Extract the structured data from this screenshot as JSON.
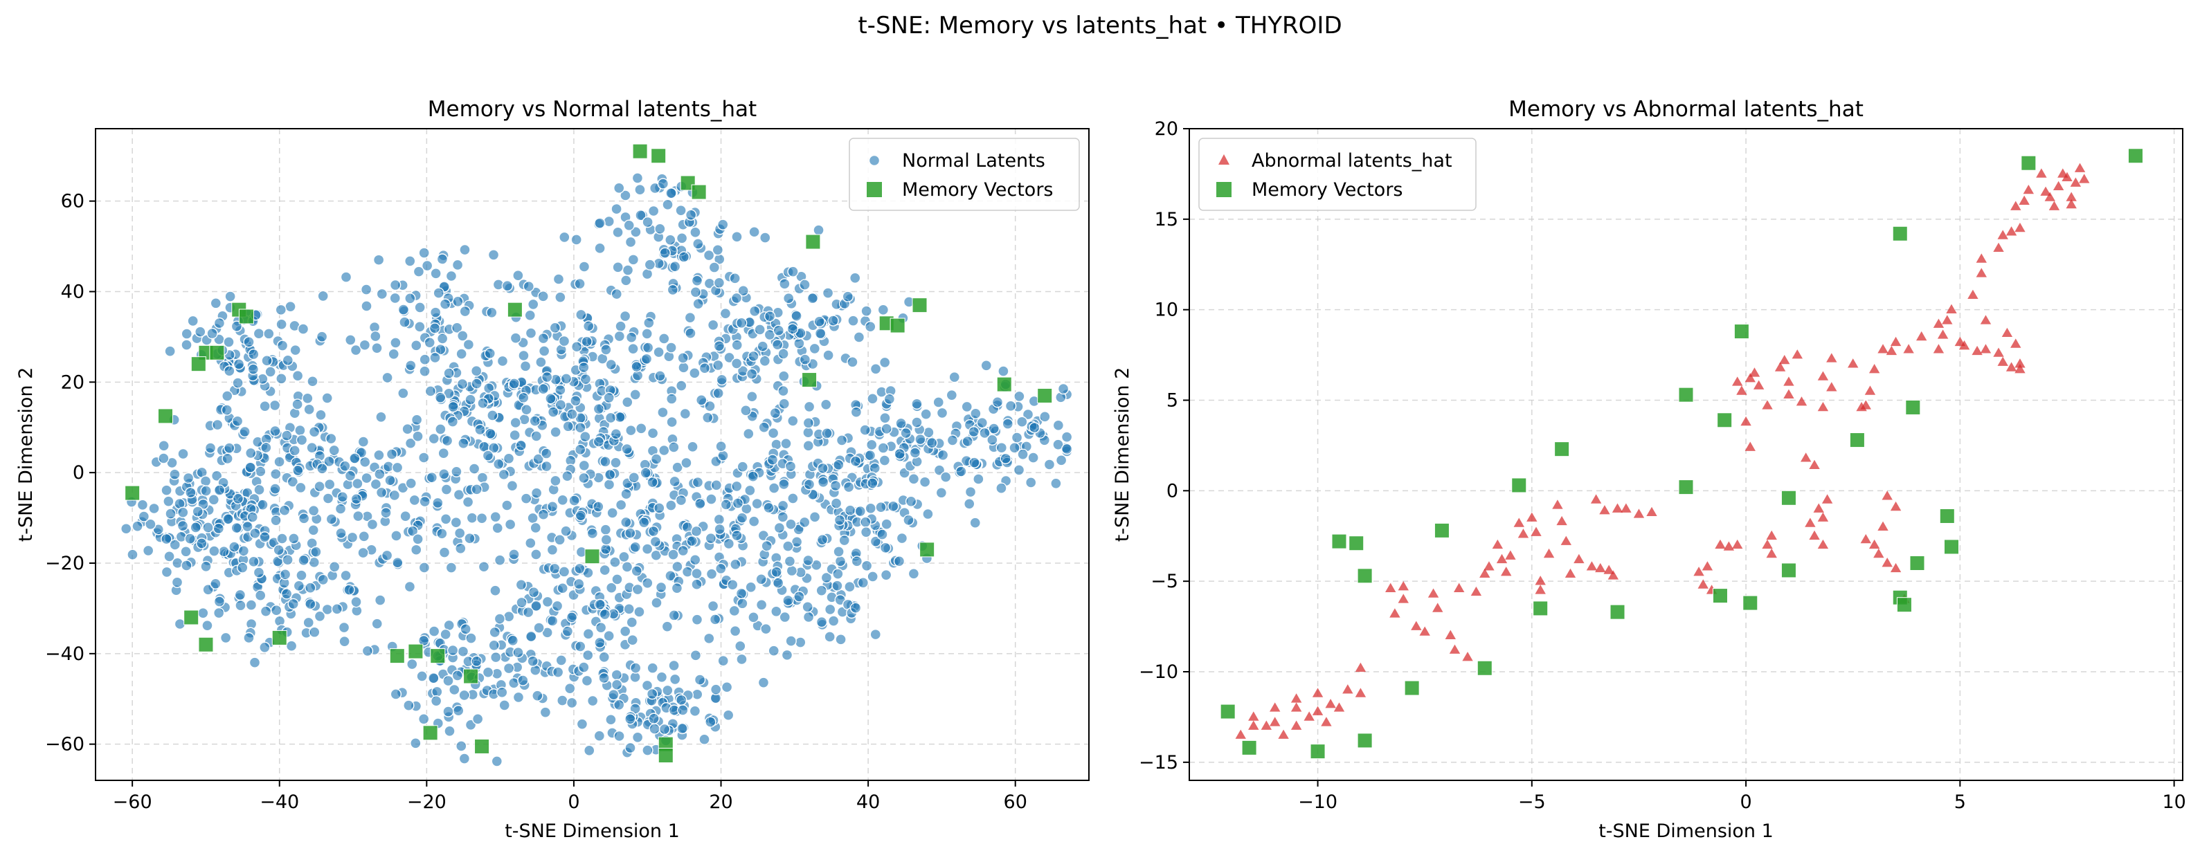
{
  "figure": {
    "title": "t-SNE: Memory vs latents_hat • THYROID"
  },
  "colors": {
    "normal": "#1f77b4",
    "abnormal": "#d62728",
    "memory": "#2ca02c"
  },
  "chart_data": [
    {
      "type": "scatter",
      "title": "Memory vs Normal latents_hat",
      "xlabel": "t-SNE Dimension 1",
      "ylabel": "t-SNE Dimension 2",
      "xlim": [
        -65,
        70
      ],
      "ylim": [
        -68,
        76
      ],
      "xticks": [
        -60,
        -40,
        -20,
        0,
        20,
        40,
        60
      ],
      "yticks": [
        -60,
        -40,
        -20,
        0,
        20,
        40,
        60
      ],
      "grid": true,
      "legend": "top-right",
      "series": [
        {
          "name": "Normal Latents",
          "marker": "circle",
          "color": "#1f77b4",
          "clusters": [
            {
              "cx": -50,
              "cy": -10,
              "sx": 5,
              "sy": 8,
              "n": 140
            },
            {
              "cx": -42,
              "cy": 5,
              "sx": 6,
              "sy": 6,
              "n": 80
            },
            {
              "cx": -45,
              "cy": 27,
              "sx": 4,
              "sy": 6,
              "n": 80
            },
            {
              "cx": -38,
              "cy": -25,
              "sx": 6,
              "sy": 8,
              "n": 110
            },
            {
              "cx": -30,
              "cy": -5,
              "sx": 5,
              "sy": 10,
              "n": 70
            },
            {
              "cx": -20,
              "cy": 35,
              "sx": 6,
              "sy": 7,
              "n": 80
            },
            {
              "cx": -12,
              "cy": 15,
              "sx": 7,
              "sy": 7,
              "n": 100
            },
            {
              "cx": -15,
              "cy": -5,
              "sx": 6,
              "sy": 8,
              "n": 80
            },
            {
              "cx": -15,
              "cy": -45,
              "sx": 5,
              "sy": 7,
              "n": 90
            },
            {
              "cx": 0,
              "cy": 25,
              "sx": 5,
              "sy": 10,
              "n": 100
            },
            {
              "cx": 5,
              "cy": 0,
              "sx": 7,
              "sy": 10,
              "n": 130
            },
            {
              "cx": 0,
              "cy": -35,
              "sx": 6,
              "sy": 10,
              "n": 130
            },
            {
              "cx": 13,
              "cy": 50,
              "sx": 5,
              "sy": 8,
              "n": 90
            },
            {
              "cx": 12,
              "cy": -52,
              "sx": 5,
              "sy": 5,
              "n": 80
            },
            {
              "cx": 15,
              "cy": -15,
              "sx": 7,
              "sy": 8,
              "n": 110
            },
            {
              "cx": 20,
              "cy": 25,
              "sx": 6,
              "sy": 6,
              "n": 80
            },
            {
              "cx": 32,
              "cy": 33,
              "sx": 5,
              "sy": 6,
              "n": 80
            },
            {
              "cx": 30,
              "cy": 0,
              "sx": 7,
              "sy": 9,
              "n": 130
            },
            {
              "cx": 30,
              "cy": -28,
              "sx": 6,
              "sy": 6,
              "n": 70
            },
            {
              "cx": 47,
              "cy": 5,
              "sx": 7,
              "sy": 7,
              "n": 100
            },
            {
              "cx": 60,
              "cy": 8,
              "sx": 4,
              "sy": 6,
              "n": 60
            },
            {
              "cx": 40,
              "cy": -15,
              "sx": 5,
              "sy": 5,
              "n": 50
            }
          ]
        },
        {
          "name": "Memory Vectors",
          "marker": "square",
          "color": "#2ca02c",
          "points": [
            [
              9,
              71
            ],
            [
              11.5,
              70
            ],
            [
              15.5,
              64
            ],
            [
              17,
              62
            ],
            [
              32.5,
              51
            ],
            [
              -8,
              36
            ],
            [
              -45.5,
              36
            ],
            [
              -44.5,
              34.5
            ],
            [
              -50,
              26.5
            ],
            [
              -48.5,
              26.5
            ],
            [
              -51,
              24
            ],
            [
              -55.5,
              12.5
            ],
            [
              -60,
              -4.5
            ],
            [
              42.5,
              33
            ],
            [
              44,
              32.5
            ],
            [
              47,
              37
            ],
            [
              32,
              20.5
            ],
            [
              58.5,
              19.5
            ],
            [
              64,
              17
            ],
            [
              2.5,
              -18.5
            ],
            [
              48,
              -17
            ],
            [
              -52,
              -32
            ],
            [
              -50,
              -38
            ],
            [
              -40,
              -36.5
            ],
            [
              -24,
              -40.5
            ],
            [
              -21.5,
              -39.5
            ],
            [
              -18.5,
              -40.5
            ],
            [
              -19.5,
              -57.5
            ],
            [
              -14,
              -45
            ],
            [
              -12.5,
              -60.5
            ],
            [
              12.5,
              -60
            ],
            [
              12.5,
              -62.5
            ]
          ]
        }
      ]
    },
    {
      "type": "scatter",
      "title": "Memory vs Abnormal latents_hat",
      "xlabel": "t-SNE Dimension 1",
      "ylabel": "t-SNE Dimension 2",
      "xlim": [
        -13,
        10.2
      ],
      "ylim": [
        -16,
        20
      ],
      "xticks": [
        -10,
        -5,
        0,
        5,
        10
      ],
      "yticks": [
        -15,
        -10,
        -5,
        0,
        5,
        10,
        15,
        20
      ],
      "grid": true,
      "legend": "top-left",
      "series": [
        {
          "name": "Abnormal latents_hat",
          "marker": "triangle",
          "color": "#d62728",
          "points": [
            [
              -11.8,
              -13.5
            ],
            [
              -11.5,
              -13
            ],
            [
              -11.5,
              -12.5
            ],
            [
              -11.2,
              -13
            ],
            [
              -11,
              -12.8
            ],
            [
              -11,
              -12
            ],
            [
              -10.8,
              -13.5
            ],
            [
              -10.5,
              -13
            ],
            [
              -10.5,
              -12
            ],
            [
              -10.5,
              -11.5
            ],
            [
              -10.2,
              -12.5
            ],
            [
              -10,
              -11.2
            ],
            [
              -10,
              -12.2
            ],
            [
              -9.8,
              -12.8
            ],
            [
              -9.7,
              -11.8
            ],
            [
              -9.5,
              -12
            ],
            [
              -9.3,
              -11
            ],
            [
              -9,
              -11.2
            ],
            [
              -9,
              -9.8
            ],
            [
              -8.3,
              -5.4
            ],
            [
              -8.2,
              -6.8
            ],
            [
              -8,
              -6
            ],
            [
              -8,
              -5.3
            ],
            [
              -7.7,
              -7.5
            ],
            [
              -7.5,
              -7.8
            ],
            [
              -7.2,
              -6.5
            ],
            [
              -7.3,
              -5.7
            ],
            [
              -6.9,
              -8
            ],
            [
              -6.8,
              -8.8
            ],
            [
              -6.7,
              -5.4
            ],
            [
              -6.5,
              -9.2
            ],
            [
              -6.3,
              -5.6
            ],
            [
              -6.1,
              -4.6
            ],
            [
              -6,
              -4.2
            ],
            [
              -5.8,
              -3
            ],
            [
              -5.7,
              -3.8
            ],
            [
              -5.6,
              -4.5
            ],
            [
              -5.5,
              -3.6
            ],
            [
              -5.3,
              -1.8
            ],
            [
              -5.2,
              -2.4
            ],
            [
              -5,
              -1.5
            ],
            [
              -4.9,
              -2.3
            ],
            [
              -4.8,
              -5
            ],
            [
              -4.8,
              -5.5
            ],
            [
              -4.6,
              -3.5
            ],
            [
              -4.4,
              -0.8
            ],
            [
              -4.3,
              -1.7
            ],
            [
              -4.2,
              -2.8
            ],
            [
              -4.1,
              -4.6
            ],
            [
              -3.9,
              -3.8
            ],
            [
              -3.6,
              -4.2
            ],
            [
              -3.4,
              -4.3
            ],
            [
              -3.2,
              -4.4
            ],
            [
              -3.1,
              -4.7
            ],
            [
              -3.5,
              -0.5
            ],
            [
              -3.3,
              -1.1
            ],
            [
              -3,
              -1
            ],
            [
              -2.8,
              -1
            ],
            [
              -2.5,
              -1.3
            ],
            [
              -2.2,
              -1.2
            ],
            [
              -1.1,
              -4.5
            ],
            [
              -1,
              -5.2
            ],
            [
              -0.9,
              -4.2
            ],
            [
              -0.8,
              -5.5
            ],
            [
              -0.6,
              -3
            ],
            [
              -0.4,
              -3.1
            ],
            [
              -0.2,
              -3
            ],
            [
              -0.2,
              6
            ],
            [
              -0.1,
              5.5
            ],
            [
              0,
              3.8
            ],
            [
              0.1,
              6.2
            ],
            [
              0.1,
              2.4
            ],
            [
              0.2,
              6.5
            ],
            [
              0.3,
              5.8
            ],
            [
              0.5,
              4.7
            ],
            [
              0.5,
              -3
            ],
            [
              0.6,
              -2.5
            ],
            [
              0.6,
              -3.5
            ],
            [
              0.8,
              6.8
            ],
            [
              0.9,
              7.2
            ],
            [
              1,
              6
            ],
            [
              1,
              5.3
            ],
            [
              1.2,
              7.5
            ],
            [
              1.3,
              4.9
            ],
            [
              1.4,
              1.8
            ],
            [
              1.5,
              -1.8
            ],
            [
              1.6,
              -2.5
            ],
            [
              1.6,
              1.4
            ],
            [
              1.7,
              -1
            ],
            [
              1.8,
              -3
            ],
            [
              1.8,
              -1.5
            ],
            [
              1.9,
              -0.5
            ],
            [
              1.8,
              6.3
            ],
            [
              1.8,
              4.6
            ],
            [
              2,
              5.7
            ],
            [
              2,
              7.3
            ],
            [
              2.5,
              7
            ],
            [
              2.7,
              4.6
            ],
            [
              2.8,
              4.7
            ],
            [
              2.9,
              5.5
            ],
            [
              3,
              6.7
            ],
            [
              2.8,
              -2.7
            ],
            [
              3,
              -3
            ],
            [
              3.1,
              -3.5
            ],
            [
              3.2,
              -2
            ],
            [
              3.3,
              -4
            ],
            [
              3.5,
              -4.3
            ],
            [
              3.3,
              -0.3
            ],
            [
              3.5,
              -0.9
            ],
            [
              3.7,
              -6
            ],
            [
              3.2,
              7.8
            ],
            [
              3.4,
              7.7
            ],
            [
              3.5,
              8.2
            ],
            [
              3.8,
              7.8
            ],
            [
              4.1,
              8.5
            ],
            [
              4.5,
              7.8
            ],
            [
              4.6,
              8.6
            ],
            [
              4.7,
              9.4
            ],
            [
              4.8,
              10
            ],
            [
              4.5,
              9.2
            ],
            [
              5,
              8.2
            ],
            [
              5.1,
              8
            ],
            [
              5.4,
              7.7
            ],
            [
              5.6,
              7.8
            ],
            [
              5.9,
              7.6
            ],
            [
              6,
              7.1
            ],
            [
              6.2,
              6.8
            ],
            [
              6.4,
              7
            ],
            [
              6.4,
              6.7
            ],
            [
              6.3,
              8.1
            ],
            [
              6.1,
              8.7
            ],
            [
              5.6,
              9.4
            ],
            [
              5.3,
              10.8
            ],
            [
              5.5,
              12
            ],
            [
              5.5,
              12.8
            ],
            [
              5.9,
              13.4
            ],
            [
              6,
              14.1
            ],
            [
              6.2,
              14.3
            ],
            [
              6.4,
              14.5
            ],
            [
              6.3,
              15.7
            ],
            [
              6.5,
              16
            ],
            [
              6.6,
              16.6
            ],
            [
              6.9,
              17.5
            ],
            [
              7,
              16.5
            ],
            [
              7.1,
              16.2
            ],
            [
              7.2,
              15.7
            ],
            [
              7.3,
              16.8
            ],
            [
              7.4,
              17.5
            ],
            [
              7.5,
              17.3
            ],
            [
              7.6,
              15.8
            ],
            [
              7.7,
              17
            ],
            [
              7.8,
              17.8
            ],
            [
              7.9,
              17.2
            ],
            [
              7.6,
              16.2
            ]
          ]
        },
        {
          "name": "Memory Vectors",
          "marker": "square",
          "color": "#2ca02c",
          "points": [
            [
              6.6,
              18.1
            ],
            [
              9.1,
              18.5
            ],
            [
              3.6,
              14.2
            ],
            [
              -0.1,
              8.8
            ],
            [
              -1.4,
              5.3
            ],
            [
              -0.5,
              3.9
            ],
            [
              3.9,
              4.6
            ],
            [
              2.6,
              2.8
            ],
            [
              -4.3,
              2.3
            ],
            [
              -5.3,
              0.3
            ],
            [
              -1.4,
              0.2
            ],
            [
              1,
              -0.4
            ],
            [
              4.7,
              -1.4
            ],
            [
              -7.1,
              -2.2
            ],
            [
              -9.5,
              -2.8
            ],
            [
              -9.1,
              -2.9
            ],
            [
              4.8,
              -3.1
            ],
            [
              4,
              -4
            ],
            [
              -8.9,
              -4.7
            ],
            [
              1,
              -4.4
            ],
            [
              -0.6,
              -5.8
            ],
            [
              3.6,
              -5.9
            ],
            [
              3.7,
              -6.3
            ],
            [
              -4.8,
              -6.5
            ],
            [
              -3,
              -6.7
            ],
            [
              0.1,
              -6.2
            ],
            [
              -6.1,
              -9.8
            ],
            [
              -7.8,
              -10.9
            ],
            [
              -12.1,
              -12.2
            ],
            [
              -8.9,
              -13.8
            ],
            [
              -11.6,
              -14.2
            ],
            [
              -10,
              -14.4
            ]
          ]
        }
      ]
    }
  ]
}
